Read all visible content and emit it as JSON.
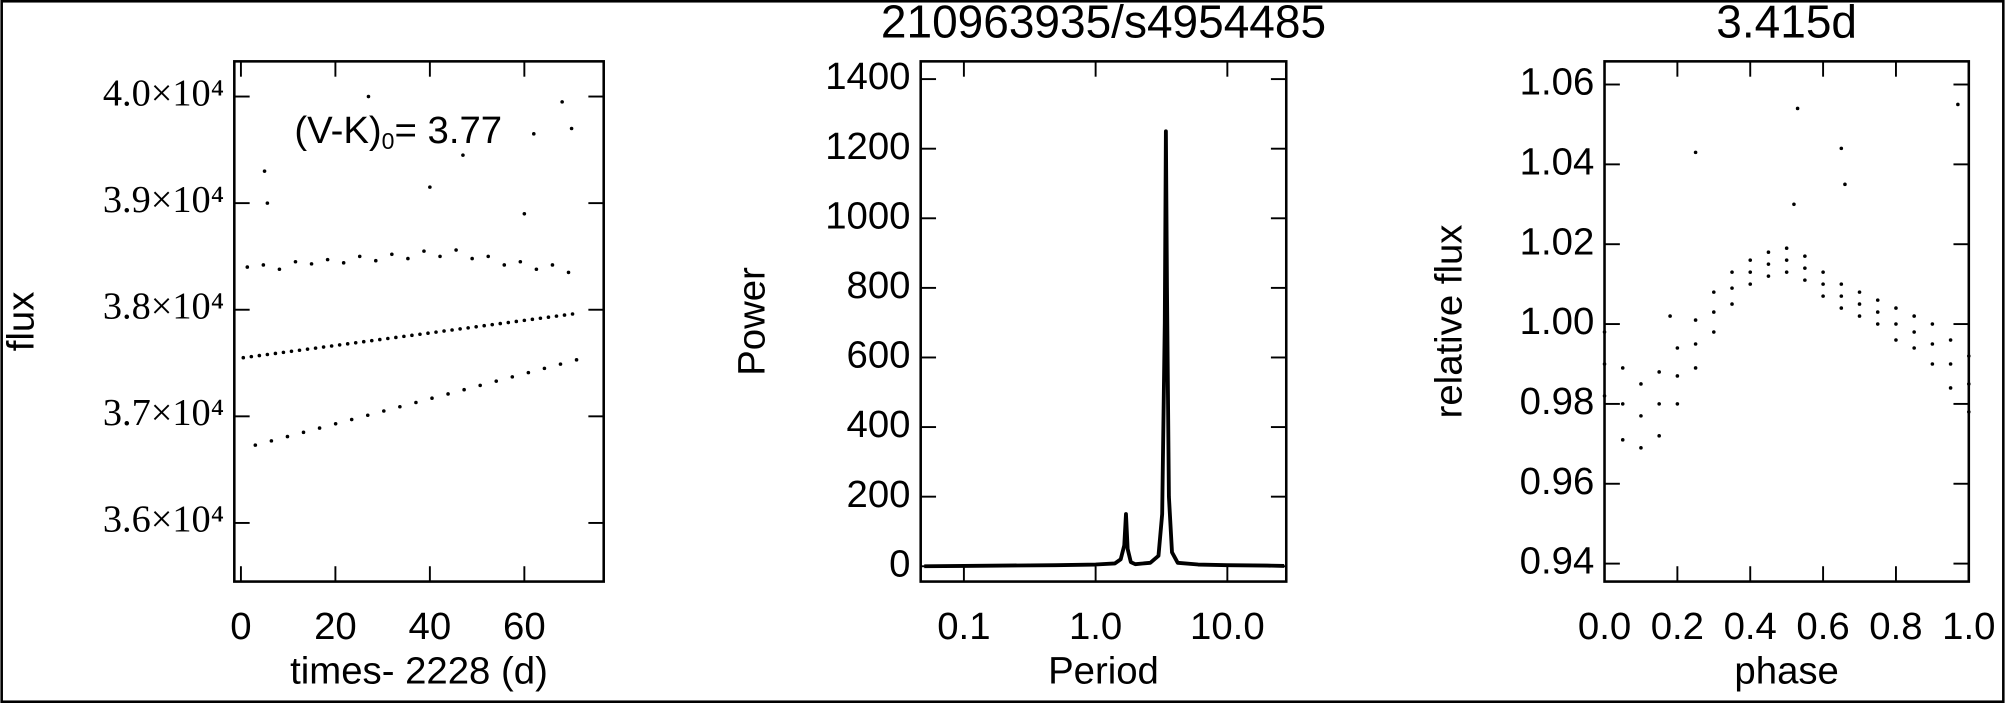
{
  "chart_data": [
    {
      "type": "scatter",
      "xlabel": "times- 2228 (d)",
      "ylabel": "flux",
      "color": "#000000",
      "annotation": [
        "(V-K)",
        "0",
        "= 3.77"
      ],
      "xlim": [
        -1.4,
        76.8
      ],
      "xticks": [
        0,
        20,
        40,
        60
      ],
      "ylim": [
        35450,
        40330
      ],
      "yticks": [
        {
          "value": 36000,
          "label": "3.6×10⁴"
        },
        {
          "value": 37000,
          "label": "3.7×10⁴"
        },
        {
          "value": 38000,
          "label": "3.8×10⁴"
        },
        {
          "value": 39000,
          "label": "3.9×10⁴"
        },
        {
          "value": 40000,
          "label": "4.0×10⁴"
        }
      ],
      "x": [
        0.5,
        1.35,
        2.2,
        3.05,
        3.9,
        4.75,
        5.6,
        6.45,
        7.3,
        8.15,
        9,
        9.85,
        10.7,
        11.55,
        12.4,
        13.25,
        14.1,
        14.95,
        15.8,
        16.65,
        17.5,
        18.35,
        19.2,
        20.05,
        20.9,
        21.75,
        22.6,
        23.45,
        24.3,
        25.15,
        26,
        26.85,
        27.7,
        28.55,
        29.4,
        30.25,
        31.1,
        31.95,
        32.8,
        33.65,
        34.5,
        35.35,
        36.2,
        37.05,
        37.9,
        38.75,
        39.6,
        40.45,
        41.3,
        42.15,
        43,
        43.85,
        44.7,
        45.55,
        46.4,
        47.25,
        48.1,
        48.95,
        49.8,
        50.65,
        51.5,
        52.35,
        53.2,
        54.05,
        54.9,
        55.75,
        56.6,
        57.45,
        58.3,
        59.15,
        60,
        60.85,
        61.7,
        62.55,
        63.4,
        64.25,
        65.1,
        65.95,
        66.8,
        67.65,
        68.5,
        69.35,
        70.2,
        71.05,
        5,
        5.6,
        27,
        40,
        47,
        60,
        62,
        68,
        70
      ],
      "values": [
        37550,
        38400,
        37560,
        36730,
        37570,
        38420,
        37580,
        36770,
        37590,
        38380,
        37600,
        36810,
        37610,
        38450,
        37620,
        36850,
        37630,
        38430,
        37640,
        36890,
        37650,
        38470,
        37660,
        36930,
        37670,
        38440,
        37680,
        36970,
        37690,
        38500,
        37700,
        37010,
        37710,
        38460,
        37720,
        37050,
        37730,
        38520,
        37740,
        37090,
        37750,
        38480,
        37760,
        37130,
        37770,
        38550,
        37780,
        37170,
        37790,
        38500,
        37800,
        37210,
        37810,
        38560,
        37820,
        37250,
        37830,
        38480,
        37840,
        37290,
        37850,
        38500,
        37860,
        37330,
        37870,
        38420,
        37880,
        37370,
        37890,
        38450,
        37900,
        37410,
        37910,
        38380,
        37920,
        37450,
        37930,
        38420,
        37940,
        37490,
        37950,
        38350,
        37960,
        37530,
        39300,
        39000,
        40000,
        39150,
        39450,
        38900,
        39650,
        39950,
        39700
      ]
    },
    {
      "type": "line",
      "title": "210963935/s4954485",
      "xlabel": "Period",
      "ylabel": "Power",
      "color": "#000000",
      "xscale": "log",
      "xlim": [
        0.047,
        28
      ],
      "xticks": [
        {
          "value": 0.1,
          "label": "0.1"
        },
        {
          "value": 1,
          "label": "1.0"
        },
        {
          "value": 10,
          "label": "10.0"
        }
      ],
      "ylim": [
        -44,
        1451
      ],
      "yticks": [
        0,
        200,
        400,
        600,
        800,
        1000,
        1200,
        1400
      ],
      "x": [
        0.05,
        0.1,
        0.2,
        0.5,
        1.0,
        1.4,
        1.55,
        1.65,
        1.7,
        1.75,
        1.85,
        2.0,
        2.6,
        3.0,
        3.2,
        3.35,
        3.415,
        3.48,
        3.6,
        3.8,
        4.2,
        6,
        10,
        20,
        27
      ],
      "values": [
        0,
        1,
        2,
        3,
        5,
        8,
        20,
        60,
        150,
        50,
        12,
        6,
        10,
        30,
        150,
        700,
        1250,
        800,
        200,
        40,
        10,
        5,
        3,
        2,
        1
      ]
    },
    {
      "type": "scatter",
      "title": "3.415d",
      "xlabel": "phase",
      "ylabel": "relative flux",
      "color": "#000000",
      "xlim": [
        0,
        1
      ],
      "xticks": [
        {
          "value": 0,
          "label": "0.0"
        },
        0.2,
        0.4,
        0.6,
        0.8,
        {
          "value": 1,
          "label": "1.0"
        }
      ],
      "ylim": [
        0.9355,
        1.0658
      ],
      "yticks": [
        0.94,
        0.96,
        0.98,
        {
          "value": 1,
          "label": "1.00"
        },
        1.02,
        1.04,
        1.06
      ],
      "x": [
        0,
        0.05,
        0.1,
        0.15,
        0.2,
        0.25,
        0.3,
        0.35,
        0.4,
        0.45,
        0.5,
        0.55,
        0.6,
        0.65,
        0.7,
        0.75,
        0.8,
        0.85,
        0.9,
        0.95,
        1,
        0,
        0.05,
        0.1,
        0.15,
        0.2,
        0.25,
        0.3,
        0.35,
        0.4,
        0.45,
        0.5,
        0.55,
        0.6,
        0.65,
        0.7,
        0.75,
        0.8,
        0.85,
        0.9,
        0.95,
        1,
        0,
        0.05,
        0.1,
        0.15,
        0.2,
        0.25,
        0.3,
        0.35,
        0.4,
        0.45,
        0.5,
        0.55,
        0.6,
        0.65,
        0.7,
        0.75,
        0.8,
        0.85,
        0.9,
        0.95,
        1,
        0.25,
        0.53,
        0.52,
        0.65,
        0.66,
        0.97,
        0.18
      ],
      "values": [
        0.99,
        0.98,
        0.977,
        0.98,
        0.987,
        0.995,
        1.003,
        1.009,
        1.013,
        1.015,
        1.016,
        1.014,
        1.01,
        1.007,
        1.005,
        1.003,
        1.0,
        0.998,
        0.995,
        0.99,
        0.985,
        0.998,
        0.989,
        0.985,
        0.988,
        0.994,
        1.001,
        1.008,
        1.013,
        1.016,
        1.018,
        1.019,
        1.017,
        1.013,
        1.01,
        1.008,
        1.006,
        1.004,
        1.002,
        1.0,
        0.996,
        0.992,
        0.982,
        0.971,
        0.969,
        0.972,
        0.98,
        0.989,
        0.998,
        1.005,
        1.01,
        1.012,
        1.013,
        1.011,
        1.007,
        1.004,
        1.002,
        1.0,
        0.996,
        0.994,
        0.99,
        0.984,
        0.978,
        1.043,
        1.054,
        1.03,
        1.044,
        1.035,
        1.055,
        1.002
      ]
    }
  ]
}
